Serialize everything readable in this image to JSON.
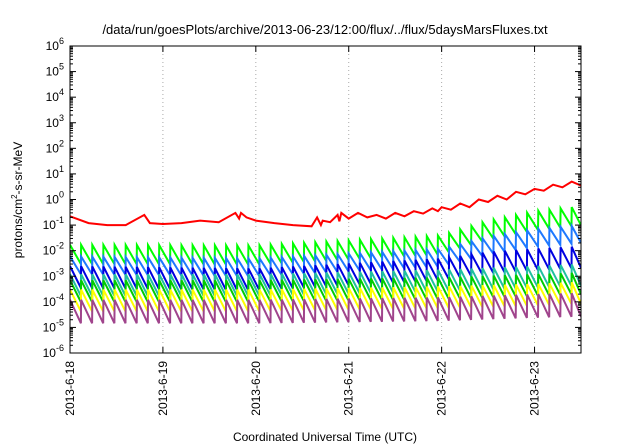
{
  "chart_data": {
    "type": "line",
    "title": "/data/run/goesPlots/archive/2013-06-23/12:00/flux/../flux/5daysMarsFluxes.txt",
    "xlabel": "Coordinated Universal Time (UTC)",
    "ylabel": {
      "prefix": "protons/cm",
      "superscript": "2",
      "suffix": "-s-sr-MeV"
    },
    "x_unit": "days",
    "xlim": [
      "2013-06-18 00:00",
      "2013-06-23 12:00"
    ],
    "x_ticks": [
      {
        "label": "2013-6-18",
        "value": "2013-06-18"
      },
      {
        "label": "2013-6-19",
        "value": "2013-06-19"
      },
      {
        "label": "2013-6-20",
        "value": "2013-06-20"
      },
      {
        "label": "2013-6-21",
        "value": "2013-06-21"
      },
      {
        "label": "2013-6-22",
        "value": "2013-06-22"
      },
      {
        "label": "2013-6-23",
        "value": "2013-06-23"
      }
    ],
    "y_scale": "log",
    "ylim": [
      1e-06,
      1000000.0
    ],
    "y_ticks": [
      {
        "base": "10",
        "exp": "-6",
        "value": 1e-06
      },
      {
        "base": "10",
        "exp": "-5",
        "value": 1e-05
      },
      {
        "base": "10",
        "exp": "-4",
        "value": 0.0001
      },
      {
        "base": "10",
        "exp": "-3",
        "value": 0.001
      },
      {
        "base": "10",
        "exp": "-2",
        "value": 0.01
      },
      {
        "base": "10",
        "exp": "-1",
        "value": 0.1
      },
      {
        "base": "10",
        "exp": "0",
        "value": 1.0
      },
      {
        "base": "10",
        "exp": "1",
        "value": 10.0
      },
      {
        "base": "10",
        "exp": "2",
        "value": 100.0
      },
      {
        "base": "10",
        "exp": "3",
        "value": 1000.0
      },
      {
        "base": "10",
        "exp": "4",
        "value": 10000.0
      },
      {
        "base": "10",
        "exp": "5",
        "value": 100000.0
      },
      {
        "base": "10",
        "exp": "6",
        "value": 1000000.0
      }
    ],
    "grid": {
      "vertical": true,
      "horizontal": false,
      "style": "dotted"
    },
    "legend": "none",
    "series": [
      {
        "color": "#ff0000",
        "x": [
          0.0,
          0.2,
          0.4,
          0.6,
          0.8,
          0.86,
          1.0,
          1.2,
          1.4,
          1.6,
          1.78,
          1.82,
          1.84,
          1.9,
          2.0,
          2.2,
          2.4,
          2.6,
          2.66,
          2.7,
          2.72,
          2.8,
          2.88,
          2.9,
          2.92,
          3.0,
          3.1,
          3.2,
          3.3,
          3.4,
          3.5,
          3.6,
          3.7,
          3.8,
          3.9,
          3.96,
          4.0,
          4.1,
          4.2,
          4.3,
          4.4,
          4.5,
          4.6,
          4.7,
          4.8,
          4.9,
          5.0,
          5.1,
          5.2,
          5.3,
          5.4,
          5.5
        ],
        "y": [
          0.22,
          0.12,
          0.1,
          0.1,
          0.25,
          0.12,
          0.11,
          0.12,
          0.15,
          0.13,
          0.3,
          0.18,
          0.3,
          0.2,
          0.15,
          0.12,
          0.1,
          0.09,
          0.2,
          0.1,
          0.15,
          0.13,
          0.25,
          0.14,
          0.3,
          0.18,
          0.3,
          0.2,
          0.25,
          0.18,
          0.3,
          0.22,
          0.35,
          0.28,
          0.45,
          0.35,
          0.5,
          0.4,
          0.7,
          0.5,
          1.0,
          0.8,
          1.4,
          1.0,
          2.0,
          1.6,
          2.6,
          2.2,
          3.8,
          3.0,
          5.0,
          3.5
        ]
      },
      {
        "color": "#00ff00",
        "x": [
          0.0,
          2.0,
          4.0,
          4.5,
          5.0,
          5.5
        ],
        "y": [
          0.017,
          0.016,
          0.04,
          0.15,
          0.35,
          0.55
        ],
        "sawtooth_period": 0.12,
        "sawtooth_depth": 0.75
      },
      {
        "color": "#1e78ff",
        "x": [
          0.0,
          2.0,
          4.0,
          4.5,
          5.0,
          5.5
        ],
        "y": [
          0.006,
          0.005,
          0.012,
          0.035,
          0.07,
          0.1
        ],
        "sawtooth_period": 0.12,
        "sawtooth_depth": 0.7
      },
      {
        "color": "#0000e0",
        "x": [
          0.0,
          2.0,
          4.0,
          4.5,
          5.0,
          5.5
        ],
        "y": [
          0.0025,
          0.002,
          0.005,
          0.009,
          0.012,
          0.015
        ],
        "sawtooth_period": 0.12,
        "sawtooth_depth": 0.85
      },
      {
        "color": "#20c0a0",
        "x": [
          0.0,
          2.0,
          4.0,
          5.0,
          5.5
        ],
        "y": [
          0.0012,
          0.0012,
          0.0018,
          0.0025,
          0.003
        ],
        "sawtooth_period": 0.12,
        "sawtooth_depth": 0.85
      },
      {
        "color": "#00cc00",
        "x": [
          0.0,
          2.0,
          4.0,
          5.0,
          5.5
        ],
        "y": [
          0.0007,
          0.0007,
          0.0009,
          0.0012,
          0.0014
        ],
        "sawtooth_period": 0.12,
        "sawtooth_depth": 0.85
      },
      {
        "color": "#ffff00",
        "x": [
          0.0,
          2.0,
          4.0,
          5.0,
          5.5
        ],
        "y": [
          0.0003,
          0.0003,
          0.0004,
          0.0005,
          0.0006
        ],
        "sawtooth_period": 0.12,
        "sawtooth_depth": 0.85
      },
      {
        "color": "#a0448c",
        "x": [
          0.0,
          2.0,
          4.0,
          5.0,
          5.5
        ],
        "y": [
          0.00012,
          0.00012,
          0.00015,
          0.0002,
          0.00022
        ],
        "sawtooth_period": 0.12,
        "sawtooth_depth": 0.92
      }
    ]
  }
}
